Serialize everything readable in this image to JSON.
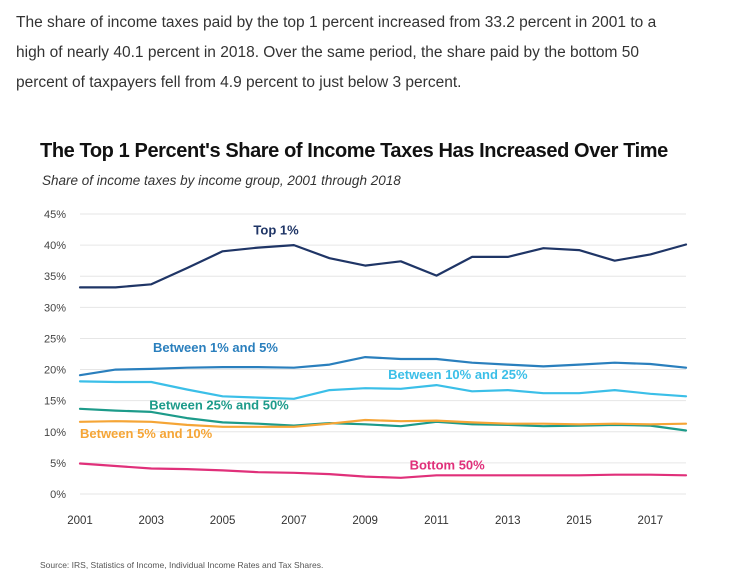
{
  "intro": {
    "line1": "The share of income taxes paid by the top 1 percent increased from 33.2 percent in 2001 to a",
    "line2": "high of nearly 40.1 percent in 2018. Over the same period, the share paid by the bottom 50",
    "line3": "percent of taxpayers fell from 4.9 percent to just below 3 percent."
  },
  "figure": {
    "source": "Source: IRS, Statistics of Income, Individual Income Rates and Tax Shares."
  },
  "chart_data": {
    "type": "line",
    "title": "The Top 1 Percent's Share of Income Taxes Has Increased Over Time",
    "subtitle": "Share of income taxes by income group, 2001 through 2018",
    "xlabel": "",
    "ylabel": "",
    "x": [
      2001,
      2002,
      2003,
      2004,
      2005,
      2006,
      2007,
      2008,
      2009,
      2010,
      2011,
      2012,
      2013,
      2014,
      2015,
      2016,
      2017,
      2018
    ],
    "x_ticks": [
      2001,
      2003,
      2005,
      2007,
      2009,
      2011,
      2013,
      2015,
      2017
    ],
    "y_ticks": [
      0,
      5,
      10,
      15,
      20,
      25,
      30,
      35,
      40,
      45
    ],
    "y_tick_labels": [
      "0%",
      "5%",
      "10%",
      "15%",
      "20%",
      "25%",
      "30%",
      "35%",
      "40%",
      "45%"
    ],
    "ylim": [
      0,
      45
    ],
    "xlim": [
      2001,
      2018
    ],
    "grid": true,
    "series": [
      {
        "name": "Top 1%",
        "color": "#1f3566",
        "values": [
          33.2,
          33.2,
          33.7,
          36.3,
          39.0,
          39.6,
          40.0,
          37.9,
          36.7,
          37.4,
          35.1,
          38.1,
          38.1,
          39.5,
          39.2,
          37.5,
          38.5,
          40.1
        ]
      },
      {
        "name": "Between 1% and 5%",
        "color": "#2a7fbd",
        "values": [
          19.1,
          20.0,
          20.1,
          20.3,
          20.4,
          20.4,
          20.3,
          20.8,
          22.0,
          21.7,
          21.7,
          21.1,
          20.8,
          20.5,
          20.8,
          21.1,
          20.9,
          20.3
        ]
      },
      {
        "name": "Between 10% and 25%",
        "color": "#3bbfe8",
        "values": [
          18.1,
          18.0,
          18.0,
          16.8,
          15.7,
          15.5,
          15.3,
          16.7,
          17.0,
          16.9,
          17.5,
          16.5,
          16.7,
          16.2,
          16.2,
          16.7,
          16.1,
          15.7
        ]
      },
      {
        "name": "Between 25% and 50%",
        "color": "#1d9b8a",
        "values": [
          13.7,
          13.4,
          13.2,
          12.2,
          11.5,
          11.3,
          11.0,
          11.4,
          11.2,
          10.9,
          11.6,
          11.2,
          11.1,
          10.9,
          11.0,
          11.1,
          11.0,
          10.2
        ]
      },
      {
        "name": "Between 5% and 10%",
        "color": "#f5a536",
        "values": [
          11.6,
          11.7,
          11.6,
          11.1,
          10.8,
          10.8,
          10.8,
          11.3,
          11.9,
          11.7,
          11.8,
          11.5,
          11.3,
          11.3,
          11.2,
          11.3,
          11.2,
          11.3
        ]
      },
      {
        "name": "Bottom 50%",
        "color": "#e0307a",
        "values": [
          4.9,
          4.5,
          4.1,
          4.0,
          3.8,
          3.5,
          3.4,
          3.2,
          2.8,
          2.6,
          3.0,
          3.0,
          3.0,
          3.0,
          3.0,
          3.1,
          3.1,
          3.0
        ]
      }
    ]
  }
}
